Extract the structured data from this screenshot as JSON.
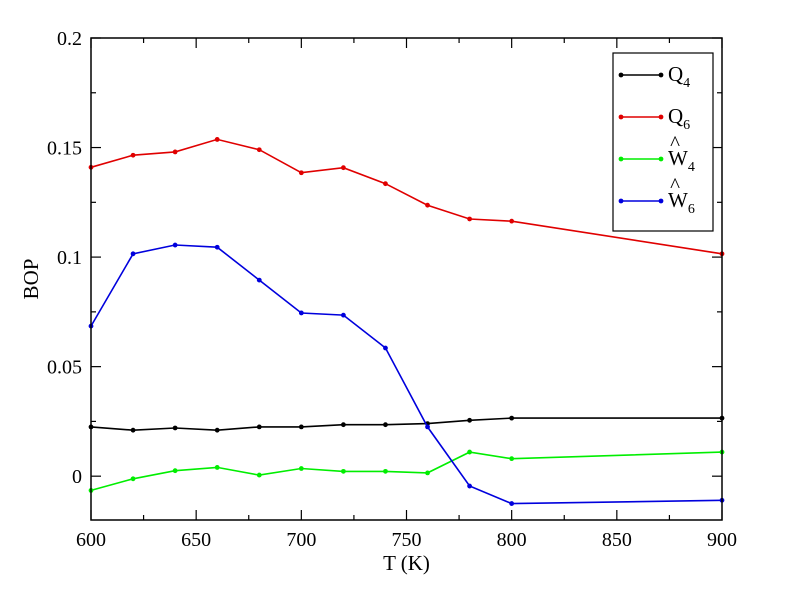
{
  "chart_data": {
    "type": "line",
    "xlabel": "T (K)",
    "ylabel": "BOP",
    "xlim": [
      600,
      900
    ],
    "ylim": [
      -0.02,
      0.2
    ],
    "xticks": [
      600,
      650,
      700,
      750,
      800,
      850,
      900
    ],
    "xtick_labels": [
      "600",
      "650",
      "700",
      "750",
      "800",
      "850",
      "900"
    ],
    "yticks": [
      0,
      0.05,
      0.1,
      0.15,
      0.2
    ],
    "ytick_labels": [
      "0",
      "0.05",
      "0.1",
      "0.15",
      "0.2"
    ],
    "grid": false,
    "legend_position": "top-right",
    "series": [
      {
        "name": "Q4",
        "label_main": "Q",
        "label_sub": "4",
        "hat": false,
        "color": "#000000",
        "x": [
          600,
          620,
          640,
          660,
          680,
          700,
          720,
          740,
          760,
          780,
          800,
          900
        ],
        "y": [
          0.0225,
          0.021,
          0.022,
          0.021,
          0.0225,
          0.0225,
          0.0235,
          0.0235,
          0.024,
          0.0255,
          0.0265,
          0.0265
        ]
      },
      {
        "name": "Q6",
        "label_main": "Q",
        "label_sub": "6",
        "hat": false,
        "color": "#e00000",
        "x": [
          600,
          620,
          640,
          660,
          680,
          700,
          720,
          740,
          760,
          780,
          800,
          900
        ],
        "y": [
          0.141,
          0.1465,
          0.148,
          0.1537,
          0.149,
          0.1385,
          0.1408,
          0.1335,
          0.1237,
          0.1174,
          0.1164,
          0.1015
        ]
      },
      {
        "name": "W4",
        "label_main": "W",
        "label_sub": "4",
        "hat": true,
        "color": "#00ee00",
        "x": [
          600,
          620,
          640,
          660,
          680,
          700,
          720,
          740,
          760,
          780,
          800,
          900
        ],
        "y": [
          -0.0065,
          -0.0012,
          0.0025,
          0.004,
          0.0005,
          0.0035,
          0.0022,
          0.0022,
          0.0015,
          0.011,
          0.008,
          0.011
        ]
      },
      {
        "name": "W6",
        "label_main": "W",
        "label_sub": "6",
        "hat": true,
        "color": "#0000dd",
        "x": [
          600,
          620,
          640,
          660,
          680,
          700,
          720,
          740,
          760,
          780,
          800,
          900
        ],
        "y": [
          0.0685,
          0.1015,
          0.1055,
          0.1045,
          0.0895,
          0.0745,
          0.0735,
          0.0585,
          0.0225,
          -0.0045,
          -0.0125,
          -0.011
        ]
      }
    ]
  }
}
